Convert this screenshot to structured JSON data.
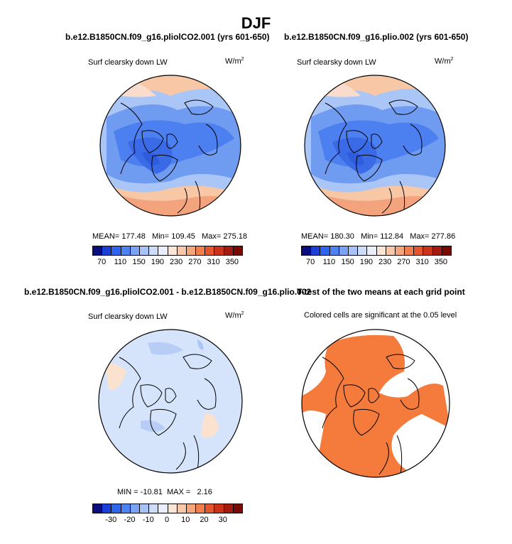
{
  "page_title": "DJF",
  "chart_data": [
    {
      "type": "heatmap",
      "projection": "north-polar-stereographic",
      "title": "b.e12.B1850CN.f09_g16.pliolCO2.001 (yrs 601-650)",
      "variable": "Surf clearsky down LW",
      "units_base": "W/m",
      "units_exp": "2",
      "stats": {
        "mean": "177.48",
        "min": "109.45",
        "max": "275.18"
      },
      "stats_text": "MEAN= 177.48   Min= 109.45   Max= 275.18",
      "colorbar": {
        "ticks": [
          "70",
          "110",
          "150",
          "190",
          "230",
          "270",
          "310",
          "350"
        ],
        "colors": [
          "#0a0f7d",
          "#1a3fd6",
          "#2e63ee",
          "#4d82f2",
          "#7ba3f5",
          "#a6c2f7",
          "#cddcf8",
          "#e9eefa",
          "#fbe6d6",
          "#f9c8a8",
          "#f5a57a",
          "#f07f4d",
          "#e4572e",
          "#c8331a",
          "#a51a0e",
          "#7a0a05"
        ]
      }
    },
    {
      "type": "heatmap",
      "projection": "north-polar-stereographic",
      "title": "b.e12.B1850CN.f09_g16.plio.002 (yrs 601-650)",
      "variable": "Surf clearsky down LW",
      "units_base": "W/m",
      "units_exp": "2",
      "stats": {
        "mean": "180.30",
        "min": "112.84",
        "max": "277.86"
      },
      "stats_text": "MEAN= 180.30   Min= 112.84   Max= 277.86",
      "colorbar": {
        "ticks": [
          "70",
          "110",
          "150",
          "190",
          "230",
          "270",
          "310",
          "350"
        ],
        "colors": [
          "#0a0f7d",
          "#1a3fd6",
          "#2e63ee",
          "#4d82f2",
          "#7ba3f5",
          "#a6c2f7",
          "#cddcf8",
          "#e9eefa",
          "#fbe6d6",
          "#f9c8a8",
          "#f5a57a",
          "#f07f4d",
          "#e4572e",
          "#c8331a",
          "#a51a0e",
          "#7a0a05"
        ]
      }
    },
    {
      "type": "heatmap",
      "projection": "north-polar-stereographic",
      "title": "b.e12.B1850CN.f09_g16.pliolCO2.001 - b.e12.B1850CN.f09_g16.plio.002",
      "variable": "Surf clearsky down LW",
      "units_base": "W/m",
      "units_exp": "2",
      "stats": {
        "min": "-10.81",
        "max": "2.16"
      },
      "stats_text": "MIN = -10.81  MAX =   2.16",
      "colorbar": {
        "ticks": [
          "-30",
          "-20",
          "-10",
          "0",
          "10",
          "20",
          "30"
        ],
        "colors": [
          "#0a0f7d",
          "#1a3fd6",
          "#2e63ee",
          "#4d82f2",
          "#7ba3f5",
          "#a6c2f7",
          "#cddcf8",
          "#e9eefa",
          "#fbe6d6",
          "#f9c8a8",
          "#f5a57a",
          "#f07f4d",
          "#e4572e",
          "#c8331a",
          "#a51a0e",
          "#7a0a05"
        ]
      }
    },
    {
      "type": "heatmap",
      "projection": "north-polar-stereographic",
      "title": "T-test of the two means at each grid point",
      "subtitle": "Colored cells are significant at the 0.05 level",
      "significance_color": "#f47b3c"
    }
  ]
}
